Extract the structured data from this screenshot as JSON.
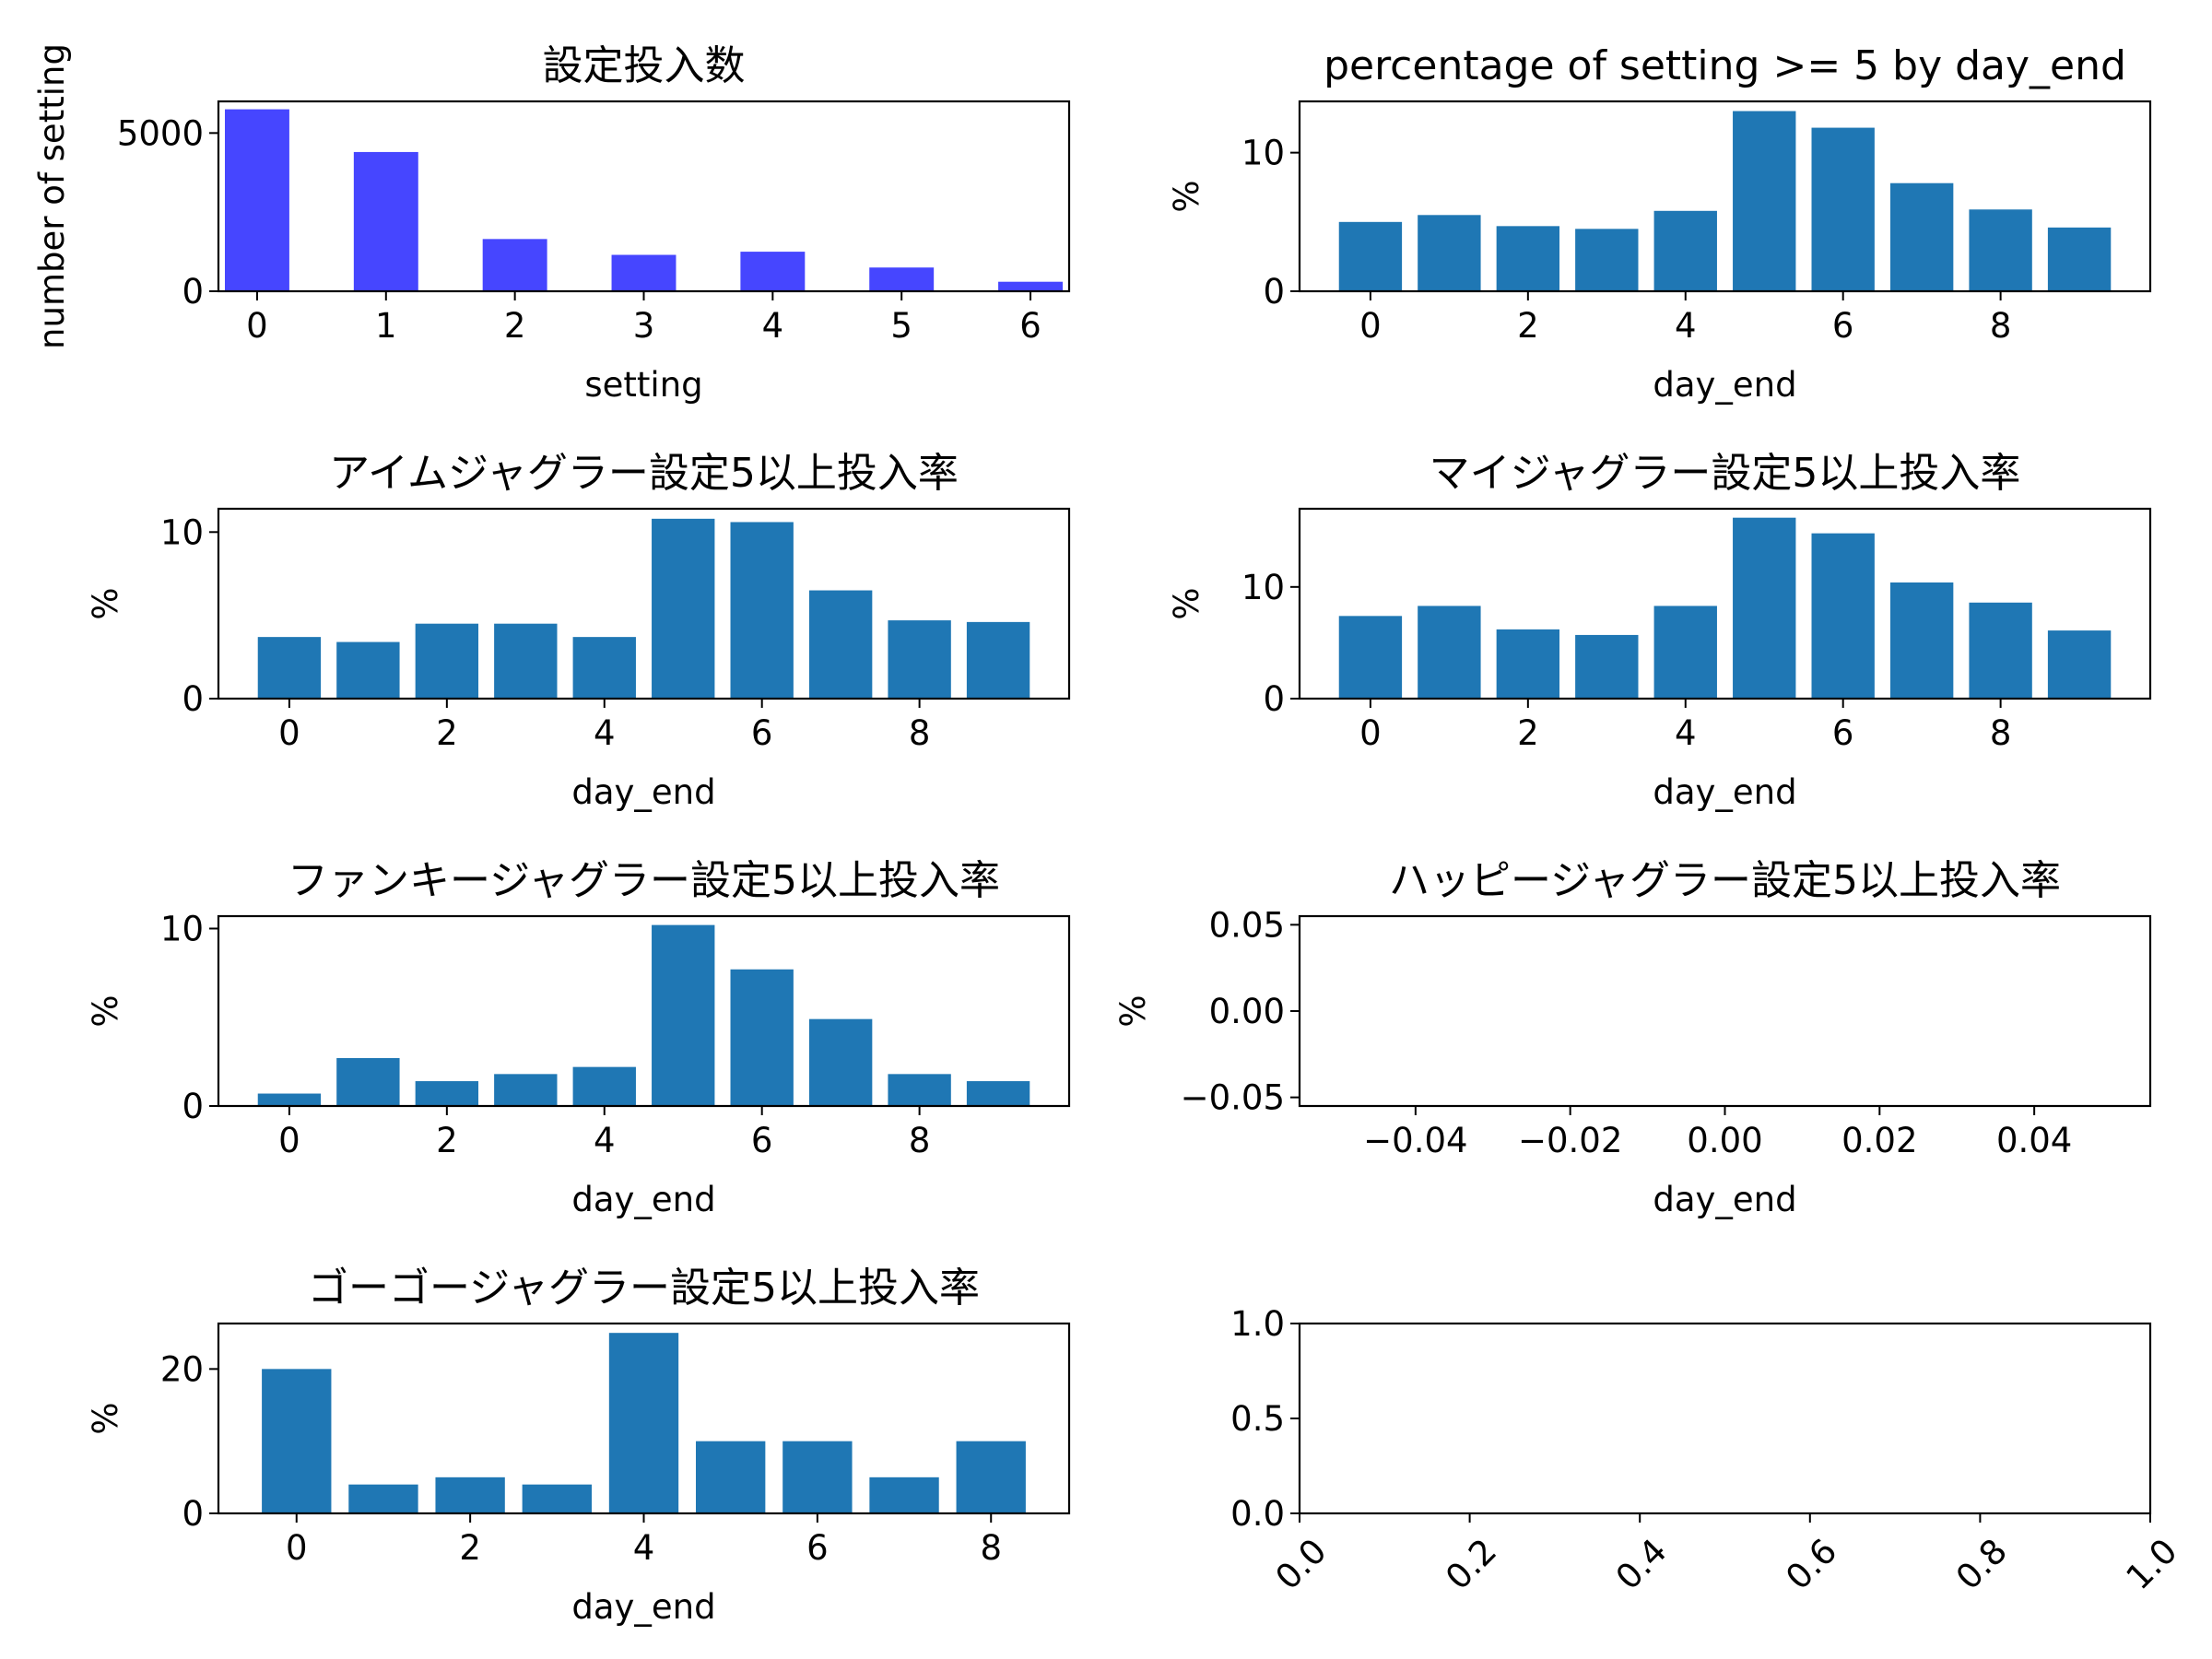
{
  "chart_data": [
    {
      "id": "p1",
      "type": "bar",
      "title": "設定投入数",
      "xlabel": "setting",
      "ylabel": "number of setting",
      "x": [
        0,
        1,
        2,
        3,
        4,
        5,
        6
      ],
      "values": [
        5750,
        4400,
        1650,
        1150,
        1250,
        750,
        300
      ],
      "xlim": [
        -0.3,
        6.3
      ],
      "ylim": [
        0,
        6000
      ],
      "xticks": [
        0,
        1,
        2,
        3,
        4,
        5,
        6
      ],
      "xtick_labels": [
        "0",
        "1",
        "2",
        "3",
        "4",
        "5",
        "6"
      ],
      "yticks": [
        0,
        5000
      ],
      "ytick_labels": [
        "0",
        "5000"
      ],
      "color": "#4646ff"
    },
    {
      "id": "p2",
      "type": "bar",
      "title": "percentage of setting >= 5 by day_end",
      "xlabel": "day_end",
      "ylabel": "%",
      "x": [
        0,
        1,
        2,
        3,
        4,
        5,
        6,
        7,
        8,
        9
      ],
      "values": [
        5.0,
        5.5,
        4.7,
        4.5,
        5.8,
        13.0,
        11.8,
        7.8,
        5.9,
        4.6
      ],
      "xlim": [
        -0.9,
        9.9
      ],
      "ylim": [
        0,
        13.7
      ],
      "xticks": [
        0,
        2,
        4,
        6,
        8
      ],
      "xtick_labels": [
        "0",
        "2",
        "4",
        "6",
        "8"
      ],
      "yticks": [
        0,
        10
      ],
      "ytick_labels": [
        "0",
        "10"
      ],
      "color": "#1f77b4"
    },
    {
      "id": "p3",
      "type": "bar",
      "title": "アイムジャグラー設定5以上投入率",
      "xlabel": "day_end",
      "ylabel": "%",
      "x": [
        0,
        1,
        2,
        3,
        4,
        5,
        6,
        7,
        8,
        9
      ],
      "values": [
        3.7,
        3.4,
        4.5,
        4.5,
        3.7,
        10.8,
        10.6,
        6.5,
        4.7,
        4.6
      ],
      "xlim": [
        -0.9,
        9.9
      ],
      "ylim": [
        0,
        11.4
      ],
      "xticks": [
        0,
        2,
        4,
        6,
        8
      ],
      "xtick_labels": [
        "0",
        "2",
        "4",
        "6",
        "8"
      ],
      "yticks": [
        0,
        10
      ],
      "ytick_labels": [
        "0",
        "10"
      ],
      "color": "#1f77b4"
    },
    {
      "id": "p4",
      "type": "bar",
      "title": "マイジャグラー設定5以上投入率",
      "xlabel": "day_end",
      "ylabel": "%",
      "x": [
        0,
        1,
        2,
        3,
        4,
        5,
        6,
        7,
        8,
        9
      ],
      "values": [
        7.4,
        8.3,
        6.2,
        5.7,
        8.3,
        16.2,
        14.8,
        10.4,
        8.6,
        6.1
      ],
      "xlim": [
        -0.9,
        9.9
      ],
      "ylim": [
        0,
        17.0
      ],
      "xticks": [
        0,
        2,
        4,
        6,
        8
      ],
      "xtick_labels": [
        "0",
        "2",
        "4",
        "6",
        "8"
      ],
      "yticks": [
        0,
        10
      ],
      "ytick_labels": [
        "0",
        "10"
      ],
      "color": "#1f77b4"
    },
    {
      "id": "p5",
      "type": "bar",
      "title": "ファンキージャグラー設定5以上投入率",
      "xlabel": "day_end",
      "ylabel": "%",
      "x": [
        0,
        1,
        2,
        3,
        4,
        5,
        6,
        7,
        8,
        9
      ],
      "values": [
        0.7,
        2.7,
        1.4,
        1.8,
        2.2,
        10.2,
        7.7,
        4.9,
        1.8,
        1.4
      ],
      "xlim": [
        -0.9,
        9.9
      ],
      "ylim": [
        0,
        10.7
      ],
      "xticks": [
        0,
        2,
        4,
        6,
        8
      ],
      "xtick_labels": [
        "0",
        "2",
        "4",
        "6",
        "8"
      ],
      "yticks": [
        0,
        10
      ],
      "ytick_labels": [
        "0",
        "10"
      ],
      "color": "#1f77b4"
    },
    {
      "id": "p6",
      "type": "bar",
      "title": "ハッピージャグラー設定5以上投入率",
      "xlabel": "day_end",
      "ylabel": "%",
      "x": [],
      "values": [],
      "xlim": [
        -0.055,
        0.055
      ],
      "ylim": [
        -0.055,
        0.055
      ],
      "xticks": [
        -0.04,
        -0.02,
        0.0,
        0.02,
        0.04
      ],
      "xtick_labels": [
        "−0.04",
        "−0.02",
        "0.00",
        "0.02",
        "0.04"
      ],
      "yticks": [
        -0.05,
        0.0,
        0.05
      ],
      "ytick_labels": [
        "−0.05",
        "0.00",
        "0.05"
      ],
      "color": "#1f77b4"
    },
    {
      "id": "p7",
      "type": "bar",
      "title": "ゴーゴージャグラー設定5以上投入率",
      "xlabel": "day_end",
      "ylabel": "%",
      "x": [
        0,
        1,
        2,
        3,
        4,
        5,
        6,
        7,
        8
      ],
      "values": [
        20.0,
        4.0,
        5.0,
        4.0,
        25.0,
        10.0,
        10.0,
        5.0,
        10.0
      ],
      "xlim": [
        -0.9,
        8.9
      ],
      "ylim": [
        0,
        26.3
      ],
      "xticks": [
        0,
        2,
        4,
        6,
        8
      ],
      "xtick_labels": [
        "0",
        "2",
        "4",
        "6",
        "8"
      ],
      "yticks": [
        0,
        20
      ],
      "ytick_labels": [
        "0",
        "20"
      ],
      "color": "#1f77b4"
    },
    {
      "id": "p8",
      "type": "bar",
      "title": "",
      "xlabel": "",
      "ylabel": "",
      "x": [],
      "values": [],
      "xlim": [
        0,
        1
      ],
      "ylim": [
        0,
        1
      ],
      "xticks": [
        0,
        0.2,
        0.4,
        0.6,
        0.8,
        1.0
      ],
      "xtick_labels": [
        "0.0",
        "0.2",
        "0.4",
        "0.6",
        "0.8",
        "1.0"
      ],
      "xtick_rotation": "45",
      "yticks": [
        0,
        0.5,
        1.0
      ],
      "ytick_labels": [
        "0.0",
        "0.5",
        "1.0"
      ],
      "color": "#1f77b4"
    }
  ]
}
